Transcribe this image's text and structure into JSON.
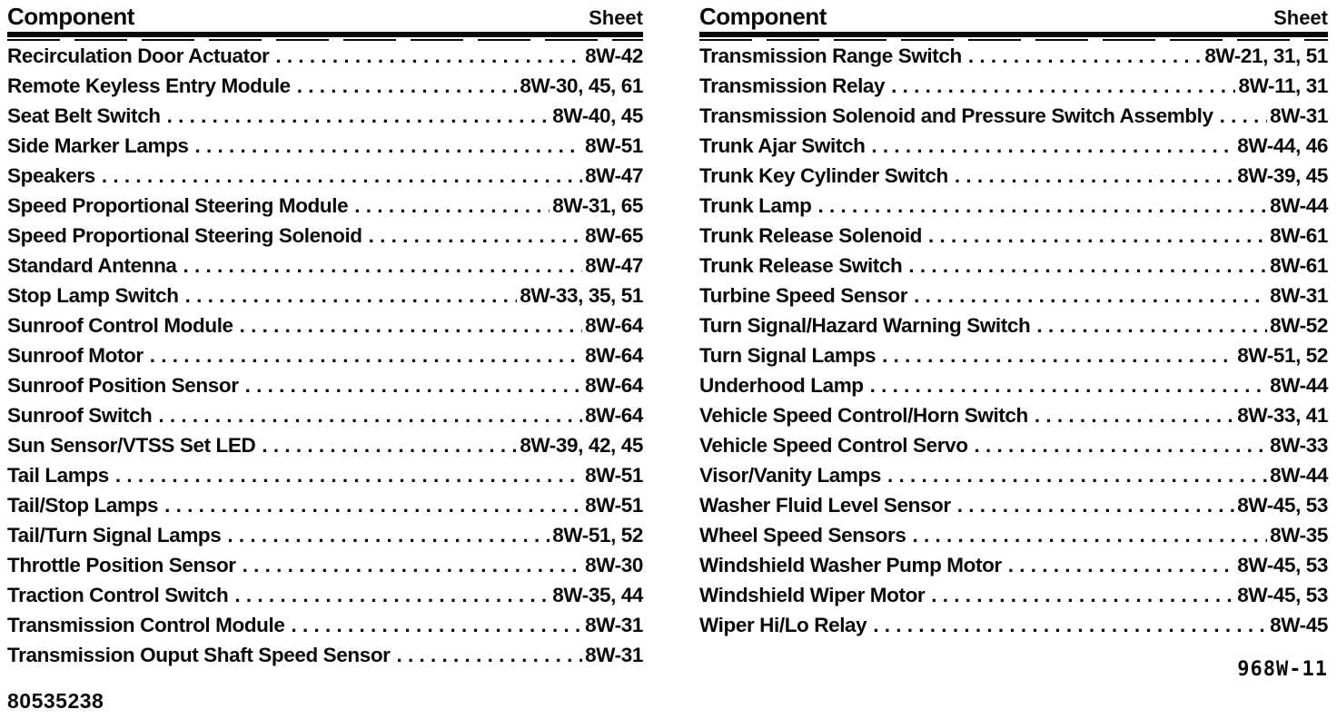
{
  "colors": {
    "text": "#0a0a0a",
    "background": "#ffffff"
  },
  "columns": [
    {
      "header": {
        "component": "Component",
        "sheet": "Sheet"
      },
      "entries": [
        {
          "component": "Recirculation Door Actuator",
          "sheet": "8W-42"
        },
        {
          "component": "Remote Keyless Entry Module",
          "sheet": "8W-30, 45, 61"
        },
        {
          "component": "Seat Belt Switch",
          "sheet": "8W-40, 45"
        },
        {
          "component": "Side Marker Lamps",
          "sheet": "8W-51"
        },
        {
          "component": "Speakers",
          "sheet": "8W-47"
        },
        {
          "component": "Speed Proportional Steering Module",
          "sheet": "8W-31, 65"
        },
        {
          "component": "Speed Proportional Steering Solenoid",
          "sheet": "8W-65"
        },
        {
          "component": "Standard Antenna",
          "sheet": "8W-47"
        },
        {
          "component": "Stop Lamp Switch",
          "sheet": "8W-33, 35, 51"
        },
        {
          "component": "Sunroof Control Module",
          "sheet": "8W-64"
        },
        {
          "component": "Sunroof Motor",
          "sheet": "8W-64"
        },
        {
          "component": "Sunroof Position Sensor",
          "sheet": "8W-64"
        },
        {
          "component": "Sunroof Switch",
          "sheet": "8W-64"
        },
        {
          "component": "Sun Sensor/VTSS Set LED",
          "sheet": "8W-39, 42, 45"
        },
        {
          "component": "Tail Lamps",
          "sheet": "8W-51"
        },
        {
          "component": "Tail/Stop Lamps",
          "sheet": "8W-51"
        },
        {
          "component": "Tail/Turn Signal Lamps",
          "sheet": "8W-51, 52"
        },
        {
          "component": "Throttle Position Sensor",
          "sheet": "8W-30"
        },
        {
          "component": "Traction Control Switch",
          "sheet": "8W-35, 44"
        },
        {
          "component": "Transmission Control Module",
          "sheet": "8W-31"
        },
        {
          "component": "Transmission Ouput Shaft Speed Sensor",
          "sheet": "8W-31"
        }
      ],
      "footer": {
        "text": "80535238"
      }
    },
    {
      "header": {
        "component": "Component",
        "sheet": "Sheet"
      },
      "entries": [
        {
          "component": "Transmission Range Switch",
          "sheet": "8W-21, 31, 51"
        },
        {
          "component": "Transmission Relay",
          "sheet": "8W-11, 31"
        },
        {
          "component": "Transmission Solenoid and Pressure Switch Assembly",
          "sheet": "8W-31"
        },
        {
          "component": "Trunk Ajar Switch",
          "sheet": "8W-44, 46"
        },
        {
          "component": "Trunk Key Cylinder Switch",
          "sheet": "8W-39, 45"
        },
        {
          "component": "Trunk Lamp",
          "sheet": "8W-44"
        },
        {
          "component": "Trunk Release Solenoid",
          "sheet": "8W-61"
        },
        {
          "component": "Trunk Release Switch",
          "sheet": "8W-61"
        },
        {
          "component": "Turbine Speed Sensor",
          "sheet": "8W-31"
        },
        {
          "component": "Turn Signal/Hazard Warning Switch",
          "sheet": "8W-52"
        },
        {
          "component": "Turn Signal Lamps",
          "sheet": "8W-51, 52"
        },
        {
          "component": "Underhood Lamp",
          "sheet": "8W-44"
        },
        {
          "component": "Vehicle Speed Control/Horn Switch",
          "sheet": "8W-33, 41"
        },
        {
          "component": "Vehicle Speed Control Servo",
          "sheet": "8W-33"
        },
        {
          "component": "Visor/Vanity Lamps",
          "sheet": "8W-44"
        },
        {
          "component": "Washer Fluid Level Sensor",
          "sheet": "8W-45, 53"
        },
        {
          "component": "Wheel Speed Sensors",
          "sheet": "8W-35"
        },
        {
          "component": "Windshield Washer Pump Motor",
          "sheet": "8W-45, 53"
        },
        {
          "component": "Windshield Wiper Motor",
          "sheet": "8W-45, 53"
        },
        {
          "component": "Wiper Hi/Lo Relay",
          "sheet": "8W-45"
        }
      ],
      "footer": {
        "text": "968W-11"
      }
    }
  ]
}
